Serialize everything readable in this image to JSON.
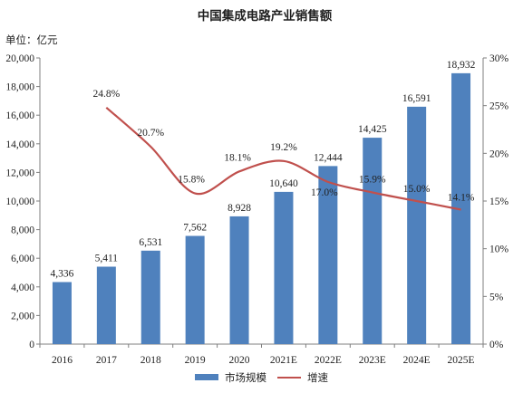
{
  "chart_data": {
    "type": "bar",
    "title": "中国集成电路产业销售额",
    "unit_label": "单位：亿元",
    "categories": [
      "2016",
      "2017",
      "2018",
      "2019",
      "2020",
      "2021E",
      "2022E",
      "2023E",
      "2024E",
      "2025E"
    ],
    "series": [
      {
        "name": "市场规模",
        "type": "bar",
        "axis": "left",
        "color": "#4f81bd",
        "values": [
          4336,
          5411,
          6531,
          7562,
          8928,
          10640,
          12444,
          14425,
          16591,
          18932
        ],
        "labels": [
          "4,336",
          "5,411",
          "6,531",
          "7,562",
          "8,928",
          "10,640",
          "12,444",
          "14,425",
          "16,591",
          "18,932"
        ]
      },
      {
        "name": "增速",
        "type": "line",
        "axis": "right",
        "color": "#c0504d",
        "smooth": true,
        "values": [
          null,
          24.8,
          20.7,
          15.8,
          18.1,
          19.2,
          17.0,
          15.9,
          15.0,
          14.1
        ],
        "labels": [
          "",
          "24.8%",
          "20.7%",
          "15.8%",
          "18.1%",
          "19.2%",
          "17.0%",
          "15.9%",
          "15.0%",
          "14.1%"
        ]
      }
    ],
    "y_left": {
      "min": 0,
      "max": 20000,
      "step": 2000,
      "tick_labels": [
        "0",
        "2,000",
        "4,000",
        "6,000",
        "8,000",
        "10,000",
        "12,000",
        "14,000",
        "16,000",
        "18,000",
        "20,000"
      ]
    },
    "y_right": {
      "min": 0,
      "max": 30,
      "step": 5,
      "tick_labels": [
        "0%",
        "5%",
        "10%",
        "15%",
        "20%",
        "25%",
        "30%"
      ]
    },
    "grid": false,
    "legend": "bottom-center"
  }
}
